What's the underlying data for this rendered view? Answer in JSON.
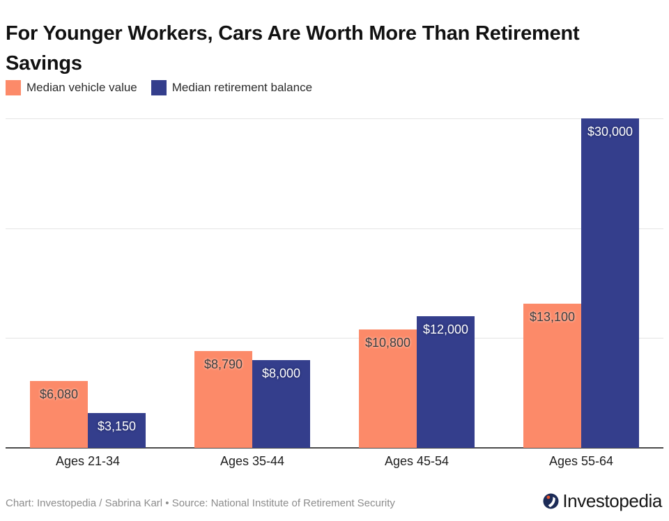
{
  "header": {
    "title": "For Younger Workers, Cars Are Worth More Than Retirement Savings"
  },
  "chart_data": {
    "type": "bar",
    "title": "For Younger Workers, Cars Are Worth More Than Retirement Savings",
    "categories": [
      "Ages 21-34",
      "Ages 35-44",
      "Ages 45-54",
      "Ages 55-64"
    ],
    "series": [
      {
        "name": "Median vehicle value",
        "color": "#FC8A69",
        "label_color": "#3d3d3d",
        "values": [
          6080,
          8790,
          10800,
          13100
        ],
        "labels": [
          "$6,080",
          "$8,790",
          "$10,800",
          "$13,100"
        ]
      },
      {
        "name": "Median retirement balance",
        "color": "#343E8C",
        "label_color": "#ffffff",
        "values": [
          3150,
          8000,
          12000,
          30000
        ],
        "labels": [
          "$3,150",
          "$8,000",
          "$12,000",
          "$30,000"
        ]
      }
    ],
    "xlabel": "",
    "ylabel": "",
    "ylim": [
      0,
      30000
    ],
    "y_gridlines": [
      10000,
      20000,
      30000
    ],
    "y_axis_labels_visible": false,
    "grid": true,
    "legend_position": "top"
  },
  "footer": {
    "attribution": "Chart: Investopedia / Sabrina Karl • Source: National Institute of Retirement Security",
    "logo_text": "Investopedia"
  },
  "colors": {
    "vehicle_orange": "#FC8A69",
    "retirement_navy": "#343E8C",
    "logo_circle_navy": "#1C2B57",
    "logo_dot_orange": "#E8542C",
    "gridline_gray": "#e4e4e4",
    "axis_gray": "#4b4b4b"
  }
}
